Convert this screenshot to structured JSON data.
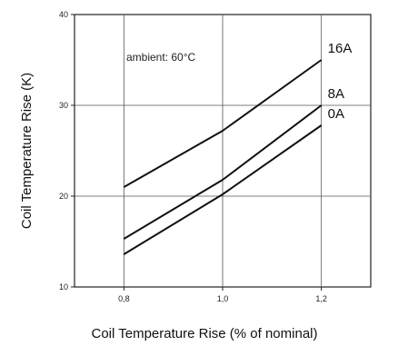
{
  "chart_data": {
    "type": "line",
    "xlabel": "Coil Temperature Rise (% of nominal)",
    "ylabel": "Coil Temperature Rise (K)",
    "xlim": [
      0.7,
      1.3
    ],
    "ylim": [
      10,
      40
    ],
    "x_ticks": [
      0.8,
      1.0,
      1.2
    ],
    "x_tick_labels": [
      "0,8",
      "1,0",
      "1,2"
    ],
    "y_ticks": [
      10,
      20,
      30,
      40
    ],
    "y_tick_labels": [
      "10",
      "20",
      "30",
      "40"
    ],
    "grid": true,
    "annotation": "ambient: 60°C",
    "series": [
      {
        "name": "16A",
        "x": [
          0.8,
          1.0,
          1.2
        ],
        "y": [
          21.0,
          27.2,
          35.0
        ],
        "color": "#111111"
      },
      {
        "name": "8A",
        "x": [
          0.8,
          1.0,
          1.2
        ],
        "y": [
          15.3,
          21.8,
          30.0
        ],
        "color": "#111111"
      },
      {
        "name": "0A",
        "x": [
          0.8,
          1.0,
          1.2
        ],
        "y": [
          13.6,
          20.2,
          27.8
        ],
        "color": "#111111"
      }
    ]
  }
}
